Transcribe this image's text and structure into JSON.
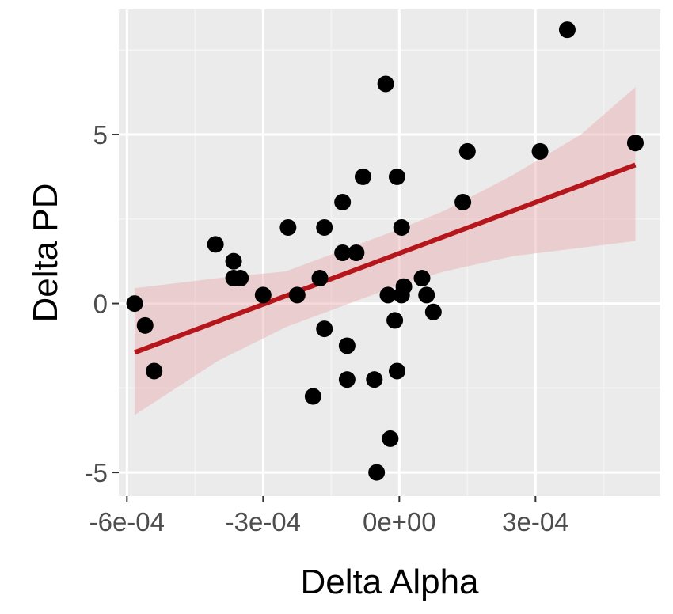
{
  "chart_data": {
    "type": "scatter",
    "title": "",
    "xlabel": "Delta Alpha",
    "ylabel": "Delta PD",
    "xlim": [
      -0.000618,
      0.000575
    ],
    "ylim": [
      -5.7,
      8.7
    ],
    "grid": true,
    "legend": "none",
    "x_ticks": [
      {
        "value": -0.0006,
        "label": "-6e-04"
      },
      {
        "value": -0.0003,
        "label": "-3e-04"
      },
      {
        "value": 0.0,
        "label": "0e+00"
      },
      {
        "value": 0.0003,
        "label": "3e-04"
      }
    ],
    "y_ticks": [
      {
        "value": -5,
        "label": "-5"
      },
      {
        "value": 0,
        "label": "0"
      },
      {
        "value": 5,
        "label": "5"
      }
    ],
    "points": [
      {
        "x": -0.000583,
        "y": 0.0
      },
      {
        "x": -0.00056,
        "y": -0.65
      },
      {
        "x": -0.00054,
        "y": -2.0
      },
      {
        "x": -0.000405,
        "y": 1.75
      },
      {
        "x": -0.000365,
        "y": 1.25
      },
      {
        "x": -0.000365,
        "y": 0.75
      },
      {
        "x": -0.00035,
        "y": 0.75
      },
      {
        "x": -0.0003,
        "y": 0.25
      },
      {
        "x": -0.000245,
        "y": 2.25
      },
      {
        "x": -0.000225,
        "y": 0.25
      },
      {
        "x": -0.00019,
        "y": -2.75
      },
      {
        "x": -0.000175,
        "y": 0.75
      },
      {
        "x": -0.000165,
        "y": 2.25
      },
      {
        "x": -0.000165,
        "y": -0.75
      },
      {
        "x": -0.000125,
        "y": 3.0
      },
      {
        "x": -0.000125,
        "y": 1.5
      },
      {
        "x": -0.000115,
        "y": -1.25
      },
      {
        "x": -0.000115,
        "y": -2.25
      },
      {
        "x": -9.5e-05,
        "y": 1.5
      },
      {
        "x": -8e-05,
        "y": 3.75
      },
      {
        "x": -5.5e-05,
        "y": -2.25
      },
      {
        "x": -5e-05,
        "y": -5.0
      },
      {
        "x": -3e-05,
        "y": 6.5
      },
      {
        "x": -2.5e-05,
        "y": 0.25
      },
      {
        "x": -2e-05,
        "y": -4.0
      },
      {
        "x": -1e-05,
        "y": -0.5
      },
      {
        "x": -5e-06,
        "y": 3.75
      },
      {
        "x": -5e-06,
        "y": -2.0
      },
      {
        "x": 5e-06,
        "y": 0.25
      },
      {
        "x": 5e-06,
        "y": 2.25
      },
      {
        "x": 1e-05,
        "y": 0.5
      },
      {
        "x": 5e-05,
        "y": 0.75
      },
      {
        "x": 6e-05,
        "y": 0.25
      },
      {
        "x": 7.5e-05,
        "y": -0.25
      },
      {
        "x": 0.00014,
        "y": 3.0
      },
      {
        "x": 0.00015,
        "y": 4.5
      },
      {
        "x": 0.00031,
        "y": 4.5
      },
      {
        "x": 0.00037,
        "y": 8.1
      },
      {
        "x": 0.00052,
        "y": 4.75
      }
    ],
    "fit_line": {
      "type": "linear",
      "color": "#b5161b",
      "points": [
        {
          "x": -0.000583,
          "y": -1.45
        },
        {
          "x": 0.00052,
          "y": 4.1
        }
      ],
      "ci_band": {
        "color": "#e8a8ad",
        "x": [
          -0.000583,
          -0.0004,
          -0.00025,
          -0.0001,
          0.0,
          0.0001,
          0.00025,
          0.0004,
          0.00052
        ],
        "lower": [
          -3.3,
          -1.7,
          -0.7,
          0.05,
          0.55,
          0.95,
          1.4,
          1.65,
          1.85
        ],
        "upper": [
          0.45,
          0.75,
          0.95,
          1.7,
          2.2,
          2.75,
          3.8,
          5.0,
          6.4
        ]
      }
    },
    "colors": {
      "panel_background": "#ebebeb",
      "grid_major": "#ffffff",
      "grid_minor": "#f4f4f4",
      "point": "#000000",
      "tick_text": "#4d4d4d",
      "axis_title": "#000000"
    }
  }
}
